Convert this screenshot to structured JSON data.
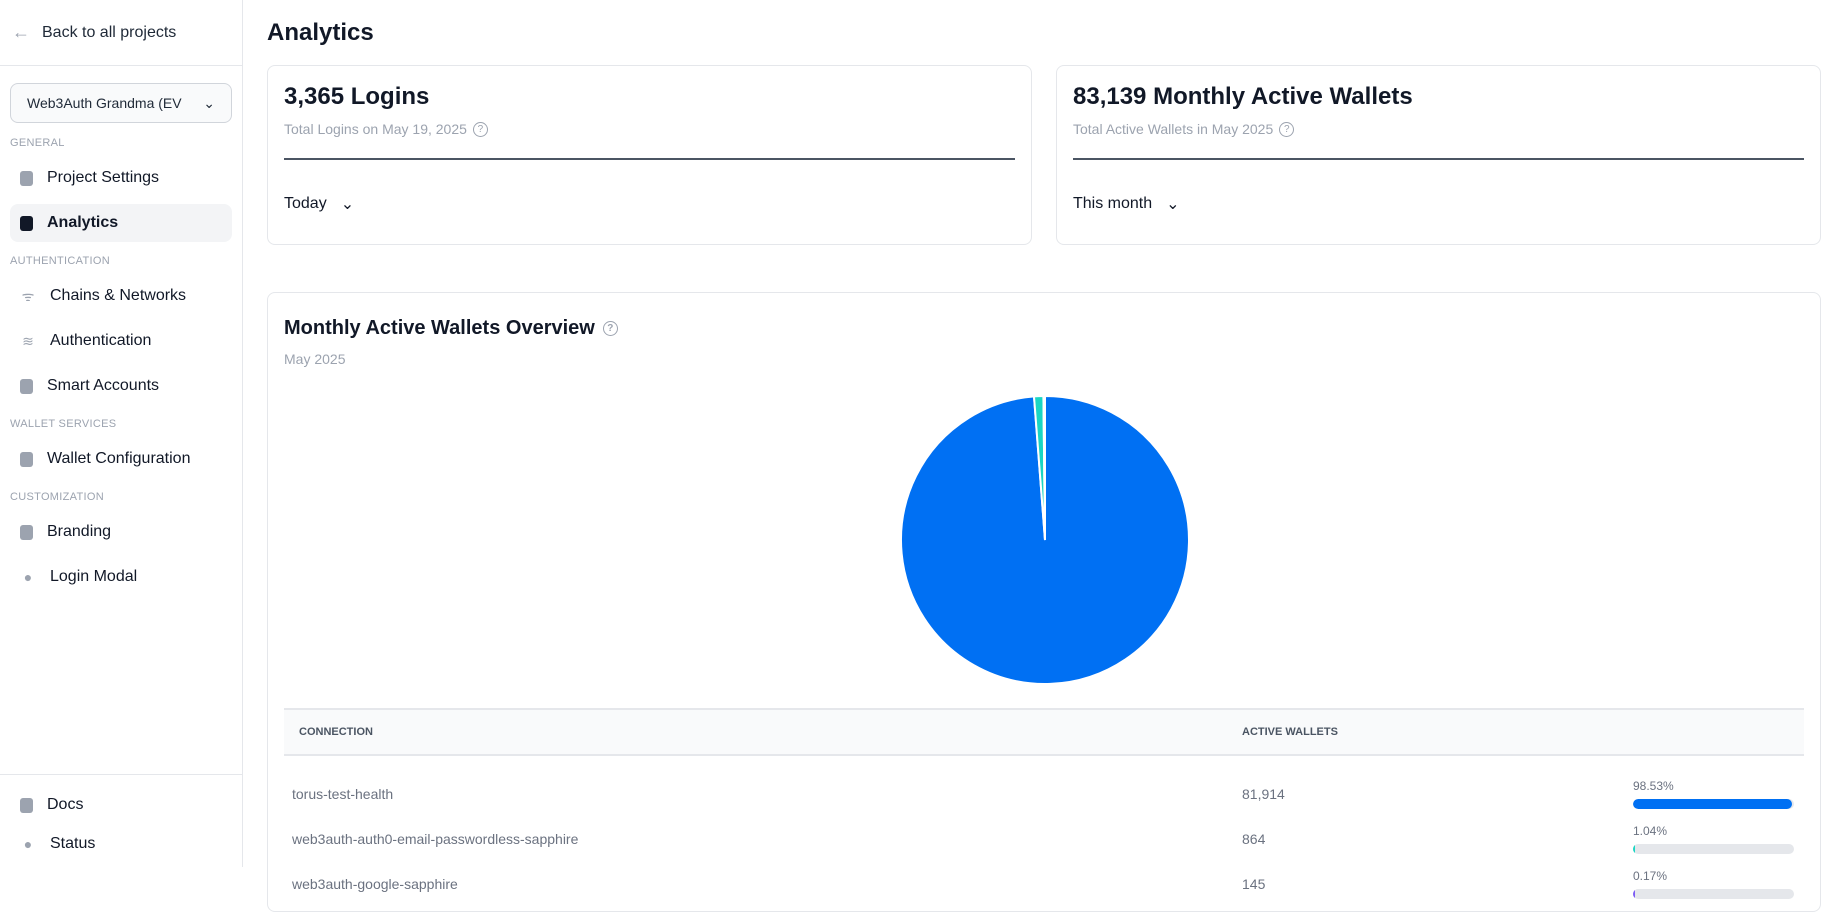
{
  "sidebar": {
    "back_label": "Back to all projects",
    "project": "Web3Auth Grandma (EV",
    "sections": [
      {
        "title": "GENERAL",
        "items": [
          {
            "label": "Project Settings",
            "icon": "clipboard-icon"
          },
          {
            "label": "Analytics",
            "icon": "chart-file-icon",
            "active": true
          }
        ]
      },
      {
        "title": "AUTHENTICATION",
        "items": [
          {
            "label": "Chains & Networks",
            "icon": "wifi-icon"
          },
          {
            "label": "Authentication",
            "icon": "database-icon"
          },
          {
            "label": "Smart Accounts",
            "icon": "document-icon"
          }
        ]
      },
      {
        "title": "WALLET SERVICES",
        "items": [
          {
            "label": "Wallet Configuration",
            "icon": "wallet-icon"
          }
        ]
      },
      {
        "title": "CUSTOMIZATION",
        "items": [
          {
            "label": "Branding",
            "icon": "palette-icon"
          },
          {
            "label": "Login Modal",
            "icon": "user-circle-icon"
          }
        ]
      }
    ],
    "bottom": [
      {
        "label": "Docs",
        "icon": "document-icon"
      },
      {
        "label": "Status",
        "icon": "check-circle-icon"
      }
    ]
  },
  "main": {
    "title": "Analytics",
    "logins": {
      "value": "3,365 Logins",
      "sub": "Total Logins on May 19, 2025",
      "range": "Today"
    },
    "wallets": {
      "value": "83,139 Monthly Active Wallets",
      "sub": "Total Active Wallets in May 2025",
      "range": "This month"
    },
    "overview": {
      "title": "Monthly Active Wallets Overview",
      "sub": "May 2025"
    },
    "table": {
      "headers": [
        "CONNECTION",
        "ACTIVE WALLETS"
      ]
    }
  },
  "chart_data": {
    "type": "pie",
    "categories": [
      "torus-test-health",
      "web3auth-auth0-email-passwordless-sapphire",
      "web3auth-google-sapphire"
    ],
    "values": [
      81914,
      864,
      145
    ],
    "percent_labels": [
      "98.53%",
      "1.04%",
      "0.17%"
    ],
    "percents": [
      98.53,
      1.04,
      0.17
    ],
    "values_display": [
      "81,914",
      "864",
      "145"
    ],
    "colors": [
      "#0070f3",
      "#1ad6c3",
      "#7c5cf5"
    ]
  }
}
